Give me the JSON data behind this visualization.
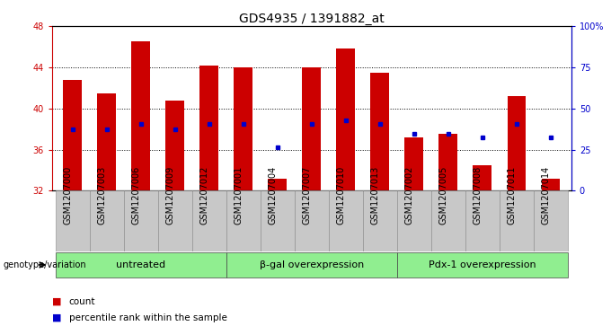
{
  "title": "GDS4935 / 1391882_at",
  "samples": [
    "GSM1207000",
    "GSM1207003",
    "GSM1207006",
    "GSM1207009",
    "GSM1207012",
    "GSM1207001",
    "GSM1207004",
    "GSM1207007",
    "GSM1207010",
    "GSM1207013",
    "GSM1207002",
    "GSM1207005",
    "GSM1207008",
    "GSM1207011",
    "GSM1207014"
  ],
  "counts": [
    42.8,
    41.5,
    46.5,
    40.8,
    44.2,
    44.0,
    33.2,
    44.0,
    45.8,
    43.5,
    37.2,
    37.5,
    34.5,
    41.2,
    33.2
  ],
  "percentiles": [
    38.0,
    38.0,
    38.5,
    38.0,
    38.5,
    38.5,
    36.2,
    38.5,
    38.8,
    38.5,
    37.5,
    37.5,
    37.2,
    38.5,
    37.2
  ],
  "groups": [
    {
      "label": "untreated",
      "start": 0,
      "end": 5
    },
    {
      "label": "β-gal overexpression",
      "start": 5,
      "end": 10
    },
    {
      "label": "Pdx-1 overexpression",
      "start": 10,
      "end": 15
    }
  ],
  "ymin": 32,
  "ymax": 48,
  "yticks_left": [
    32,
    36,
    40,
    44,
    48
  ],
  "yticks_right": [
    0,
    25,
    50,
    75,
    100
  ],
  "bar_color": "#cc0000",
  "marker_color": "#0000cc",
  "group_bg": "#90ee90",
  "tick_label_bg": "#c8c8c8",
  "bar_width": 0.55,
  "title_fontsize": 10,
  "tick_fontsize": 7,
  "label_fontsize": 7,
  "group_fontsize": 8,
  "legend_fontsize": 7.5,
  "genotype_label": "genotype/variation"
}
